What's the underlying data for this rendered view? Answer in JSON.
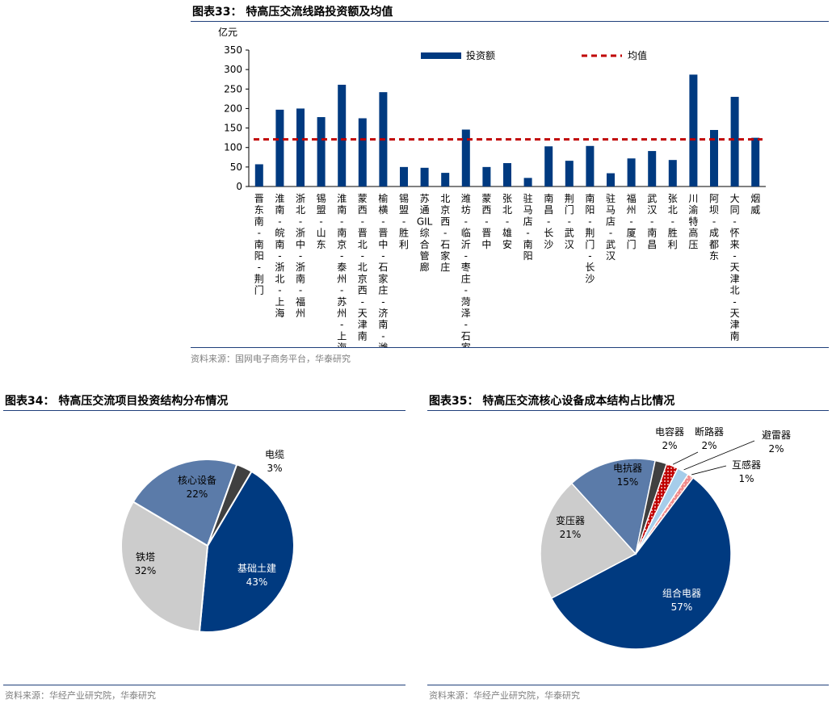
{
  "bar_panel": {
    "title": "图表33：  特高压交流线路投资额及均值",
    "source": "资料来源：国网电子商务平台，华泰研究"
  },
  "pie34_panel": {
    "title": "图表34：  特高压交流项目投资结构分布情况",
    "source": "资料来源：华经产业研究院，华泰研究"
  },
  "pie35_panel": {
    "title": "图表35：  特高压交流核心设备成本结构占比情况",
    "source": "资料来源：华经产业研究院，华泰研究"
  },
  "colors": {
    "bar": "#003a80",
    "mean_line": "#c00000",
    "navy": "#003a80",
    "steel": "#5b7ba9",
    "grey_light": "#cccccc",
    "grey_dark": "#404040",
    "red": "#c00000",
    "light_blue": "#a6cdea",
    "pink": "#f08a8a"
  },
  "chart_data": [
    {
      "type": "bar",
      "title": "特高压交流线路投资额及均值",
      "ylabel": "亿元",
      "ylim": [
        0,
        350
      ],
      "yticks": [
        0,
        50,
        100,
        150,
        200,
        250,
        300,
        350
      ],
      "grid": false,
      "legend_position": "top",
      "categories": [
        "晋东南-南阳-荆门",
        "淮南-皖南-浙北-上海",
        "浙北-浙中-浙南-福州",
        "锡盟-山东",
        "淮南-南京-泰州-苏州-上海",
        "蒙西-晋北-北京西-天津南",
        "榆横-晋中-石家庄-济南-潍坊",
        "锡盟-胜利",
        "苏通GIL综合管廊",
        "北京西-石家庄",
        "潍坊-临沂-枣庄-菏泽-石家庄",
        "蒙西-晋中",
        "张北-雄安",
        "驻马店-南阳",
        "南昌-长沙",
        "荆门-武汉",
        "南阳-荆门-长沙",
        "驻马店-武汉",
        "福州-厦门",
        "武汉-南昌",
        "张北-胜利",
        "川渝特高压",
        "阿坝-成都东",
        "大同-怀来-天津北-天津南",
        "烟威"
      ],
      "series": [
        {
          "name": "投资额",
          "type": "bar",
          "values": [
            57,
            197,
            200,
            178,
            261,
            175,
            242,
            50,
            48,
            35,
            146,
            50,
            60,
            22,
            103,
            66,
            104,
            34,
            72,
            91,
            68,
            287,
            145,
            230,
            125
          ]
        },
        {
          "name": "均值",
          "type": "line",
          "style": "dashed",
          "value": 121
        }
      ]
    },
    {
      "type": "pie",
      "title": "特高压交流项目投资结构分布情况",
      "slices": [
        {
          "label": "基础土建",
          "pct_text": "43%",
          "value": 43,
          "color": "#003a80"
        },
        {
          "label": "铁塔",
          "pct_text": "32%",
          "value": 32,
          "color": "#cccccc"
        },
        {
          "label": "核心设备",
          "pct_text": "22%",
          "value": 22,
          "color": "#5b7ba9"
        },
        {
          "label": "电缆",
          "pct_text": "3%",
          "value": 3,
          "color": "#404040"
        }
      ]
    },
    {
      "type": "pie",
      "title": "特高压交流核心设备成本结构占比情况",
      "slices": [
        {
          "label": "组合电器",
          "pct_text": "57%",
          "value": 57,
          "color": "#003a80"
        },
        {
          "label": "变压器",
          "pct_text": "21%",
          "value": 21,
          "color": "#cccccc"
        },
        {
          "label": "电抗器",
          "pct_text": "15%",
          "value": 15,
          "color": "#5b7ba9"
        },
        {
          "label": "电容器",
          "pct_text": "2%",
          "value": 2,
          "color": "#404040"
        },
        {
          "label": "断路器",
          "pct_text": "2%",
          "value": 2,
          "color": "#c00000",
          "pattern": "dots"
        },
        {
          "label": "避雷器",
          "pct_text": "2%",
          "value": 2,
          "color": "#a6cdea"
        },
        {
          "label": "互感器",
          "pct_text": "1%",
          "value": 1,
          "color": "#f08a8a",
          "pattern": "dots"
        }
      ]
    }
  ]
}
